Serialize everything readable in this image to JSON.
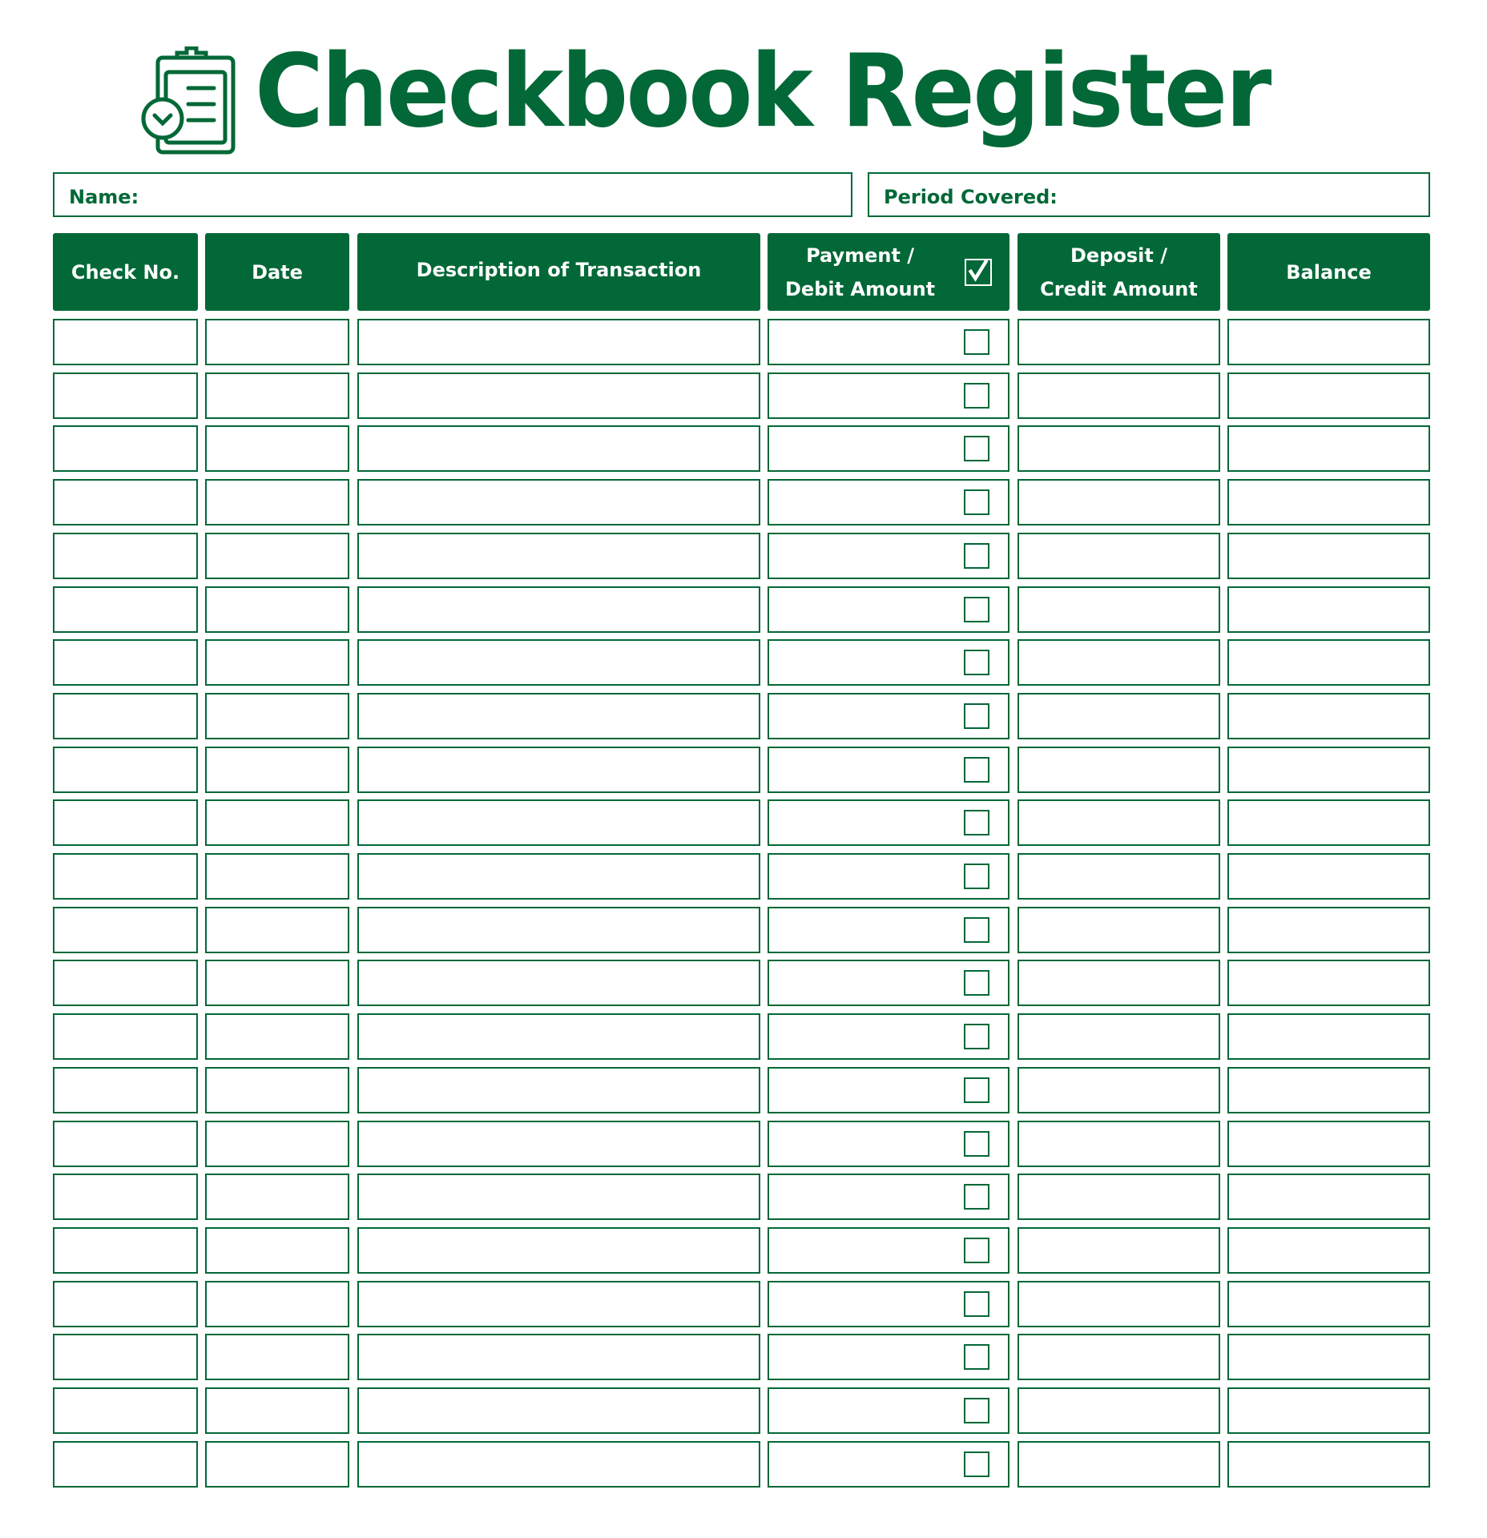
{
  "title": "Checkbook Register",
  "title_icon": "clipboard-check-icon",
  "fields": {
    "name_label": "Name:",
    "period_label": "Period Covered:"
  },
  "columns": [
    {
      "label": "Check No."
    },
    {
      "label": "Date"
    },
    {
      "label": "Description of Transaction"
    },
    {
      "label_line1": "Payment /",
      "label_line2": "Debit Amount",
      "header_checkbox": "checked"
    },
    {
      "label_line1": "Deposit /",
      "label_line2": "Credit Amount"
    },
    {
      "label": "Balance"
    }
  ],
  "rows": [
    {
      "checked": false
    },
    {
      "checked": false
    },
    {
      "checked": false
    },
    {
      "checked": false
    },
    {
      "checked": false
    },
    {
      "checked": false
    },
    {
      "checked": false
    },
    {
      "checked": false
    },
    {
      "checked": false
    },
    {
      "checked": false
    },
    {
      "checked": false
    },
    {
      "checked": false
    },
    {
      "checked": false
    },
    {
      "checked": false
    },
    {
      "checked": false
    },
    {
      "checked": false
    },
    {
      "checked": false
    },
    {
      "checked": false
    },
    {
      "checked": false
    },
    {
      "checked": false
    },
    {
      "checked": false
    },
    {
      "checked": false
    }
  ],
  "colors": {
    "accent": "#026837",
    "background": "#ffffff"
  }
}
